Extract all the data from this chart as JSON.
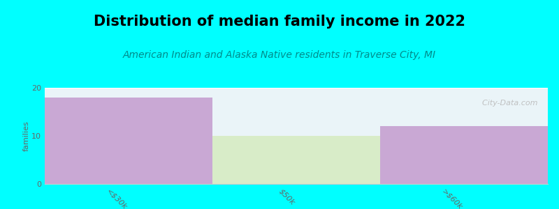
{
  "title": "Distribution of median family income in 2022",
  "subtitle": "American Indian and Alaska Native residents in Traverse City, MI",
  "categories": [
    "<$30k",
    "$50k",
    ">$60k"
  ],
  "values": [
    18,
    10,
    12
  ],
  "bar_colors": [
    "#C9A8D4",
    "#D8ECC8",
    "#C9A8D4"
  ],
  "middle_bar_value": 10,
  "background_color": "#00FFFF",
  "plot_bg_top": "#EAF4F8",
  "plot_bg_bottom": "#F5F5F5",
  "ylabel": "families",
  "ylim": [
    0,
    20
  ],
  "yticks": [
    0,
    10,
    20
  ],
  "title_fontsize": 15,
  "subtitle_fontsize": 10,
  "subtitle_color": "#008B8B",
  "watermark": "  City-Data.com",
  "watermark_color": "#BBBBBB",
  "tick_label_color": "#666666",
  "ylabel_color": "#666666"
}
